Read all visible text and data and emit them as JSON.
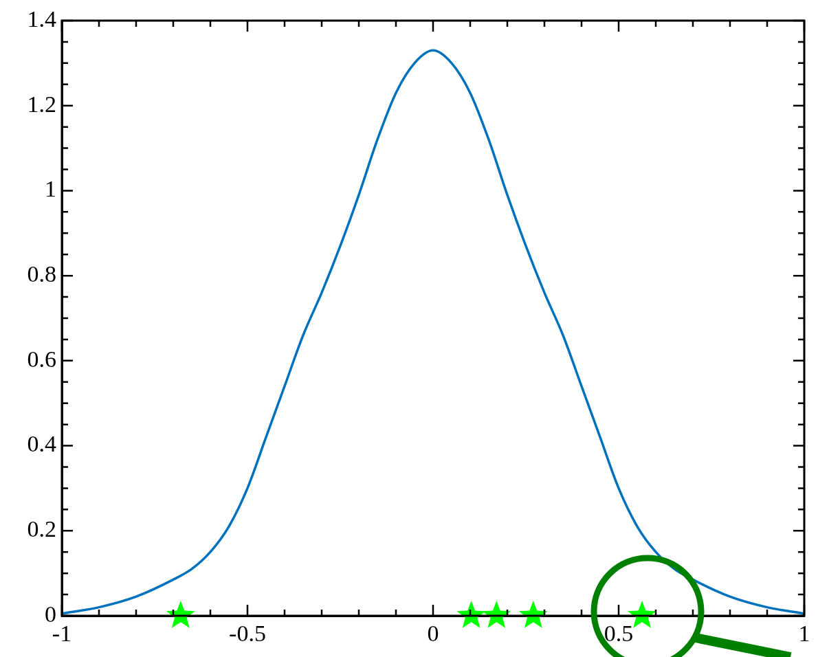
{
  "chart_data": {
    "type": "line",
    "xlim": [
      -1,
      1
    ],
    "ylim": [
      0,
      1.4
    ],
    "grid": false,
    "legend": false,
    "xticks": [
      -1,
      {
        "value": -0.9,
        "label": null
      },
      {
        "value": -0.8,
        "label": null
      },
      {
        "value": -0.7,
        "label": null
      },
      {
        "value": -0.6,
        "label": null
      },
      -0.5,
      {
        "value": -0.4,
        "label": null
      },
      {
        "value": -0.3,
        "label": null
      },
      {
        "value": -0.2,
        "label": null
      },
      {
        "value": -0.1,
        "label": null
      },
      0,
      {
        "value": 0.1,
        "label": null
      },
      {
        "value": 0.2,
        "label": null
      },
      {
        "value": 0.3,
        "label": null
      },
      {
        "value": 0.4,
        "label": null
      },
      0.5,
      {
        "value": 0.6,
        "label": null
      },
      {
        "value": 0.7,
        "label": null
      },
      {
        "value": 0.8,
        "label": null
      },
      {
        "value": 0.9,
        "label": null
      },
      1
    ],
    "yticks": [
      0,
      {
        "value": 0.05,
        "label": null
      },
      {
        "value": 0.1,
        "label": null
      },
      {
        "value": 0.15,
        "label": null
      },
      0.2,
      {
        "value": 0.25,
        "label": null
      },
      {
        "value": 0.3,
        "label": null
      },
      {
        "value": 0.35,
        "label": null
      },
      0.4,
      {
        "value": 0.45,
        "label": null
      },
      {
        "value": 0.5,
        "label": null
      },
      {
        "value": 0.55,
        "label": null
      },
      0.6,
      {
        "value": 0.65,
        "label": null
      },
      {
        "value": 0.7,
        "label": null
      },
      {
        "value": 0.75,
        "label": null
      },
      0.8,
      {
        "value": 0.85,
        "label": null
      },
      {
        "value": 0.9,
        "label": null
      },
      {
        "value": 0.95,
        "label": null
      },
      1,
      {
        "value": 1.05,
        "label": null
      },
      {
        "value": 1.1,
        "label": null
      },
      {
        "value": 1.15,
        "label": null
      },
      1.2,
      {
        "value": 1.25,
        "label": null
      },
      {
        "value": 1.3,
        "label": null
      },
      {
        "value": 1.35,
        "label": null
      },
      1.4
    ],
    "series": [
      {
        "type": "line",
        "color": "#0072bd",
        "marker": "none",
        "x": [
          -1,
          -0.9,
          -0.8,
          -0.7,
          -0.65,
          -0.6,
          -0.55,
          -0.5,
          -0.45,
          -0.4,
          -0.35,
          -0.3,
          -0.25,
          -0.2,
          -0.15,
          -0.1,
          -0.05,
          0,
          0.05,
          0.1,
          0.15,
          0.2,
          0.25,
          0.3,
          0.35,
          0.4,
          0.45,
          0.5,
          0.55,
          0.6,
          0.65,
          0.7,
          0.8,
          0.9,
          1
        ],
        "values": [
          0.005,
          0.02,
          0.045,
          0.085,
          0.11,
          0.15,
          0.21,
          0.3,
          0.42,
          0.54,
          0.66,
          0.76,
          0.87,
          0.99,
          1.12,
          1.23,
          1.3,
          1.33,
          1.3,
          1.23,
          1.12,
          0.99,
          0.87,
          0.76,
          0.66,
          0.54,
          0.42,
          0.3,
          0.21,
          0.15,
          0.11,
          0.085,
          0.045,
          0.02,
          0.005
        ]
      },
      {
        "type": "scatter",
        "color": "#00ff00",
        "marker": "star",
        "x": [
          -0.68,
          0.103,
          0.171,
          0.27,
          0.563
        ],
        "values": [
          0,
          0,
          0,
          0,
          0
        ]
      }
    ]
  }
}
